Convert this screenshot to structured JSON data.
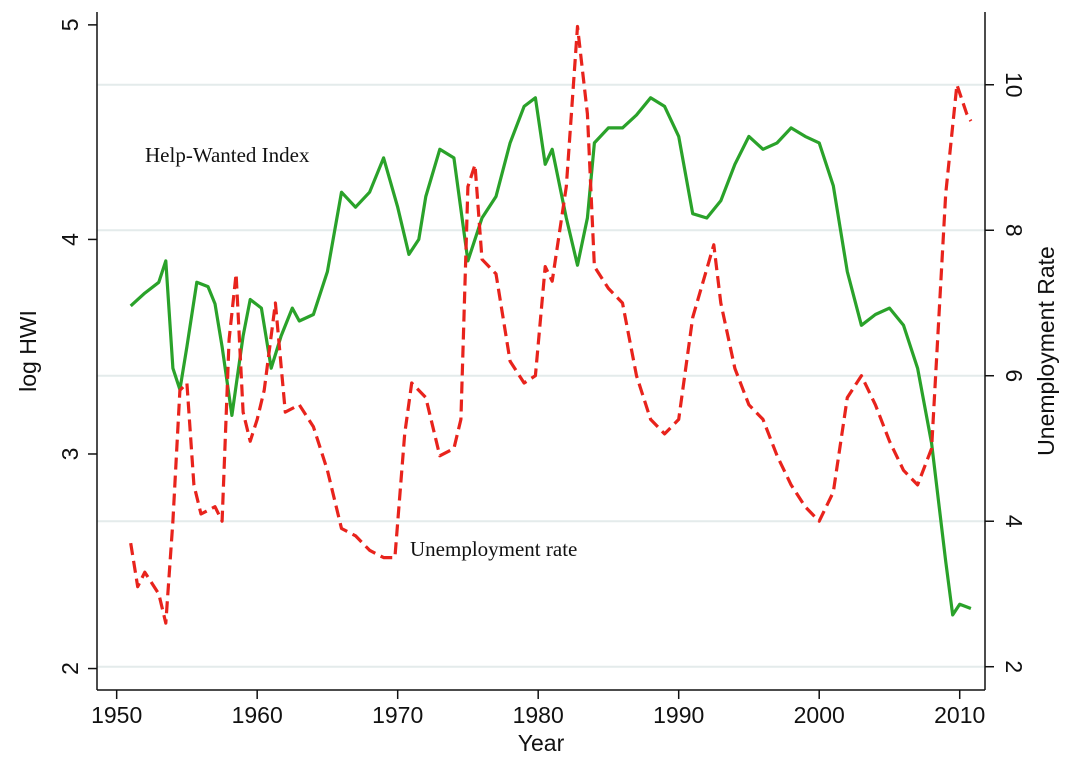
{
  "chart_data": {
    "type": "line",
    "x_label": "Year",
    "y_label": "log HWI",
    "y2_label": "Unemployment Rate",
    "annotations": [
      "Help-Wanted Index",
      "Unemployment rate"
    ],
    "xlim": [
      1948.6,
      2011.8
    ],
    "xticks": [
      1950,
      1960,
      1970,
      1980,
      1990,
      2000,
      2010
    ],
    "ylim": [
      1.9,
      5.06
    ],
    "yticks": [
      2,
      3,
      4,
      5
    ],
    "y2lim": [
      1.68,
      11.0
    ],
    "y2ticks": [
      2,
      4,
      6,
      8,
      10
    ],
    "grid": true,
    "series": [
      {
        "name": "Help-Wanted Index",
        "color": "#2aa22a",
        "dashed": false,
        "x": [
          1951,
          1952,
          1953,
          1953.5,
          1954,
          1954.5,
          1955,
          1955.7,
          1956.5,
          1957,
          1957.5,
          1958.2,
          1959,
          1959.5,
          1960.3,
          1961,
          1961.7,
          1962.5,
          1963,
          1964,
          1965,
          1966,
          1967,
          1968,
          1969,
          1970,
          1970.8,
          1971.5,
          1972,
          1973,
          1974,
          1975,
          1976,
          1977,
          1978,
          1979,
          1979.8,
          1980.5,
          1981,
          1982,
          1982.8,
          1983.5,
          1984,
          1985,
          1986,
          1987,
          1988,
          1989,
          1990,
          1991,
          1992,
          1993,
          1994,
          1995,
          1996,
          1997,
          1998,
          1999,
          2000,
          2001,
          2002,
          2003,
          2004,
          2005,
          2006,
          2007,
          2008,
          2009,
          2009.5,
          2010,
          2010.8
        ],
        "values": [
          3.69,
          3.75,
          3.8,
          3.9,
          3.4,
          3.3,
          3.5,
          3.8,
          3.78,
          3.7,
          3.5,
          3.18,
          3.55,
          3.72,
          3.68,
          3.4,
          3.55,
          3.68,
          3.62,
          3.65,
          3.85,
          4.22,
          4.15,
          4.22,
          4.38,
          4.15,
          3.93,
          4.0,
          4.2,
          4.42,
          4.38,
          3.9,
          4.1,
          4.2,
          4.45,
          4.62,
          4.66,
          4.35,
          4.42,
          4.1,
          3.88,
          4.1,
          4.45,
          4.52,
          4.52,
          4.58,
          4.66,
          4.62,
          4.48,
          4.12,
          4.1,
          4.18,
          4.35,
          4.48,
          4.42,
          4.45,
          4.52,
          4.48,
          4.45,
          4.25,
          3.85,
          3.6,
          3.65,
          3.68,
          3.6,
          3.4,
          3.05,
          2.5,
          2.25,
          2.3,
          2.28
        ]
      },
      {
        "name": "Unemployment rate",
        "color": "#e8231c",
        "dashed": true,
        "axis": "y2",
        "x": [
          1951,
          1951.5,
          1952,
          1953,
          1953.5,
          1954,
          1954.5,
          1955,
          1955.5,
          1956,
          1957,
          1957.5,
          1958,
          1958.5,
          1959,
          1959.5,
          1960,
          1960.5,
          1961.3,
          1962,
          1963,
          1964,
          1965,
          1966,
          1967,
          1968,
          1969,
          1969.8,
          1970.5,
          1971,
          1972,
          1973,
          1974,
          1974.5,
          1975,
          1975.5,
          1976,
          1977,
          1978,
          1979,
          1979.8,
          1980.5,
          1981,
          1982,
          1982.8,
          1983.5,
          1984,
          1985,
          1986,
          1987,
          1988,
          1989,
          1990,
          1991,
          1992.5,
          1993,
          1994,
          1995,
          1996,
          1997,
          1998,
          1999,
          2000,
          2001,
          2002,
          2003,
          2004,
          2005,
          2006,
          2007,
          2008,
          2009,
          2009.8,
          2010.5,
          2010.8
        ],
        "values": [
          3.7,
          3.1,
          3.3,
          3.0,
          2.6,
          4.0,
          5.8,
          5.9,
          4.5,
          4.1,
          4.2,
          4.0,
          6.5,
          7.4,
          5.5,
          5.1,
          5.4,
          5.8,
          7.0,
          5.5,
          5.6,
          5.3,
          4.7,
          3.9,
          3.8,
          3.6,
          3.5,
          3.5,
          5.2,
          5.9,
          5.7,
          4.9,
          5.0,
          5.4,
          8.6,
          8.9,
          7.6,
          7.4,
          6.2,
          5.9,
          6.0,
          7.5,
          7.3,
          8.6,
          10.8,
          9.6,
          7.5,
          7.2,
          7.0,
          6.0,
          5.4,
          5.2,
          5.4,
          6.8,
          7.8,
          7.0,
          6.1,
          5.6,
          5.4,
          4.9,
          4.5,
          4.2,
          4.0,
          4.4,
          5.7,
          6.0,
          5.6,
          5.1,
          4.7,
          4.5,
          5.0,
          8.5,
          10.0,
          9.6,
          9.5
        ]
      }
    ]
  }
}
